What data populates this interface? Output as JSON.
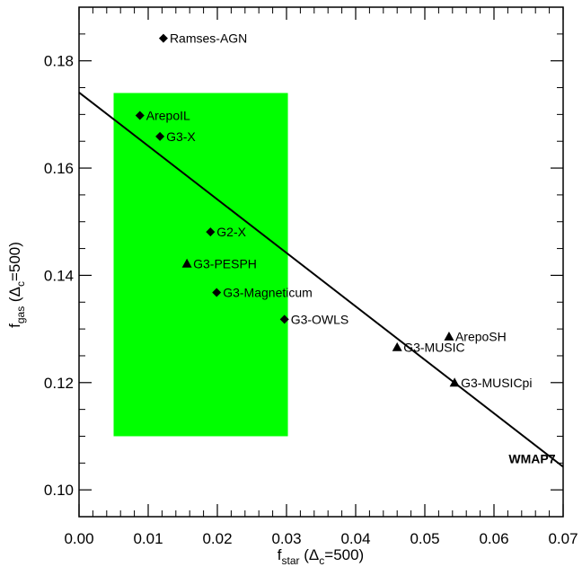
{
  "chart_data": {
    "type": "scatter",
    "title": "",
    "xlabel": {
      "main": "f",
      "sub": "star",
      "paren_open": " (Δ",
      "paren_sub": "c",
      "paren_close": "=500)"
    },
    "ylabel": {
      "main": "f",
      "sub": "gas",
      "paren_open": " (Δ",
      "paren_sub": "c",
      "paren_close": "=500)"
    },
    "xlim": [
      0.0,
      0.07
    ],
    "ylim": [
      0.095,
      0.19
    ],
    "xticks": [
      0.0,
      0.01,
      0.02,
      0.03,
      0.04,
      0.05,
      0.06,
      0.07
    ],
    "xtick_labels": [
      "0.00",
      "0.01",
      "0.02",
      "0.03",
      "0.04",
      "0.05",
      "0.06",
      "0.07"
    ],
    "yticks": [
      0.1,
      0.12,
      0.14,
      0.16,
      0.18
    ],
    "ytick_labels": [
      "0.10",
      "0.12",
      "0.14",
      "0.16",
      "0.18"
    ],
    "grid": false,
    "shaded_region": {
      "x": [
        0.005,
        0.0302
      ],
      "y": [
        0.11,
        0.174
      ],
      "color": "#00ff00"
    },
    "line": {
      "label": "WMAP7",
      "x": [
        0.0,
        0.07
      ],
      "y": [
        0.1741,
        0.1043
      ],
      "color": "#000000"
    },
    "points": [
      {
        "label": "Ramses-AGN",
        "x": 0.0122,
        "y": 0.1842,
        "marker": "diamond"
      },
      {
        "label": "ArepoIL",
        "x": 0.0088,
        "y": 0.1698,
        "marker": "diamond"
      },
      {
        "label": "G3-X",
        "x": 0.0117,
        "y": 0.1659,
        "marker": "diamond"
      },
      {
        "label": "G2-X",
        "x": 0.019,
        "y": 0.1481,
        "marker": "diamond"
      },
      {
        "label": "G3-PESPH",
        "x": 0.0156,
        "y": 0.1422,
        "marker": "triangle"
      },
      {
        "label": "G3-Magneticum",
        "x": 0.0199,
        "y": 0.1368,
        "marker": "diamond"
      },
      {
        "label": "G3-OWLS",
        "x": 0.0297,
        "y": 0.1318,
        "marker": "diamond"
      },
      {
        "label": "G3-MUSIC",
        "x": 0.046,
        "y": 0.1266,
        "marker": "triangle"
      },
      {
        "label": "ArepoSH",
        "x": 0.0535,
        "y": 0.1286,
        "marker": "triangle"
      },
      {
        "label": "G3-MUSICpi",
        "x": 0.0543,
        "y": 0.12,
        "marker": "triangle"
      }
    ]
  }
}
